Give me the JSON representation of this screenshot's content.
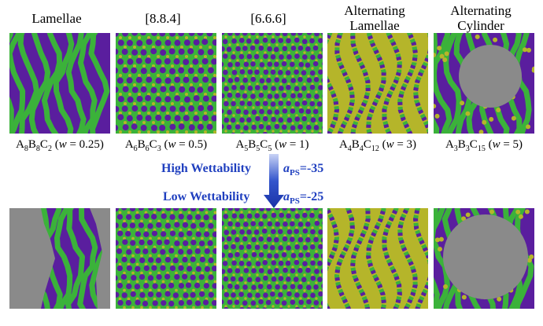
{
  "colors": {
    "purple": "#5a1e9e",
    "green": "#3bb23a",
    "yellow": "#b5b52a",
    "gray": "#8a8a8a",
    "accent": "#1f3fbf"
  },
  "columns": [
    {
      "title_line1": "Lamellae",
      "title_line2": "",
      "cap_main": "A",
      "sub_a": "8",
      "cap_b": "B",
      "sub_b": "8",
      "cap_c": "C",
      "sub_c": "2",
      "cap_w_prefix": " (",
      "cap_w_var": "w",
      "cap_w_value": " = 0.25)"
    },
    {
      "title_line1": "[8.8.4]",
      "title_line2": "",
      "cap_main": "A",
      "sub_a": "6",
      "cap_b": "B",
      "sub_b": "6",
      "cap_c": "C",
      "sub_c": "3",
      "cap_w_prefix": " (",
      "cap_w_var": "w",
      "cap_w_value": " = 0.5)"
    },
    {
      "title_line1": "[6.6.6]",
      "title_line2": "",
      "cap_main": "A",
      "sub_a": "5",
      "cap_b": "B",
      "sub_b": "5",
      "cap_c": "C",
      "sub_c": "5",
      "cap_w_prefix": " (",
      "cap_w_var": "w",
      "cap_w_value": " = 1)"
    },
    {
      "title_line1": "Alternating",
      "title_line2": "Lamellae",
      "cap_main": "A",
      "sub_a": "4",
      "cap_b": "B",
      "sub_b": "4",
      "cap_c": "C",
      "sub_c": "12",
      "cap_w_prefix": " (",
      "cap_w_var": "w",
      "cap_w_value": " = 3)"
    },
    {
      "title_line1": "Alternating",
      "title_line2": "Cylinder",
      "cap_main": "A",
      "sub_a": "3",
      "cap_b": "B",
      "sub_b": "3",
      "cap_c": "C",
      "sub_c": "15",
      "cap_w_prefix": " (",
      "cap_w_var": "w",
      "cap_w_value": " = 5)"
    }
  ],
  "center": {
    "high_label": "High Wettability",
    "low_label": "Low Wettability",
    "param_sym": "a",
    "param_sub": "PS",
    "high_value": "=-35",
    "low_value": "=-25"
  }
}
